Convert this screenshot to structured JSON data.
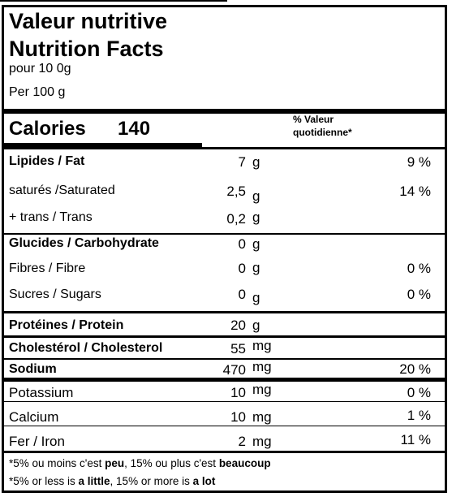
{
  "title_fr": "Valeur nutritive",
  "title_en": "Nutrition Facts",
  "serving_fr": "pour 10 0g",
  "serving_en": "Per 100 g",
  "calories_label": "Calories",
  "calories_value": "140",
  "dv_header_line1": "% Valeur",
  "dv_header_line2": "quotidienne*",
  "nutrients": [
    {
      "name": "Lipides / Fat",
      "amount": "7",
      "unit": "g",
      "dv": "9 %"
    },
    {
      "name": "saturés /Saturated",
      "amount": "2,5",
      "unit": "g",
      "dv": "14 %"
    },
    {
      "name": "+ trans / Trans",
      "amount": "0,2",
      "unit": "g",
      "dv": ""
    },
    {
      "name": "Glucides / Carbohydrate",
      "amount": "0",
      "unit": "g",
      "dv": ""
    },
    {
      "name": "Fibres / Fibre",
      "amount": "0",
      "unit": "g",
      "dv": "0 %"
    },
    {
      "name": "Sucres / Sugars",
      "amount": "0",
      "unit": "g",
      "dv": "0 %"
    },
    {
      "name": "Protéines / Protein",
      "amount": "20",
      "unit": "g",
      "dv": ""
    },
    {
      "name": "Cholestérol / Cholesterol",
      "amount": "55",
      "unit": "mg",
      "dv": ""
    },
    {
      "name": "Sodium",
      "amount": "470",
      "unit": "mg",
      "dv": "20 %"
    },
    {
      "name": "Potassium",
      "amount": "10",
      "unit": "mg",
      "dv": "0 %"
    },
    {
      "name": "Calcium",
      "amount": "10",
      "unit": "mg",
      "dv": "1 %"
    },
    {
      "name": "Fer / Iron",
      "amount": "2",
      "unit": "mg",
      "dv": "11 %"
    }
  ],
  "footnote_fr": {
    "a": "*5% ou moins c'est ",
    "b": "peu",
    "c": ", 15% ou plus c'est ",
    "d": "beaucoup"
  },
  "footnote_en": {
    "a": "*5% or less is ",
    "b": "a little",
    "c": ", 15% or more is ",
    "d": "a lot"
  }
}
